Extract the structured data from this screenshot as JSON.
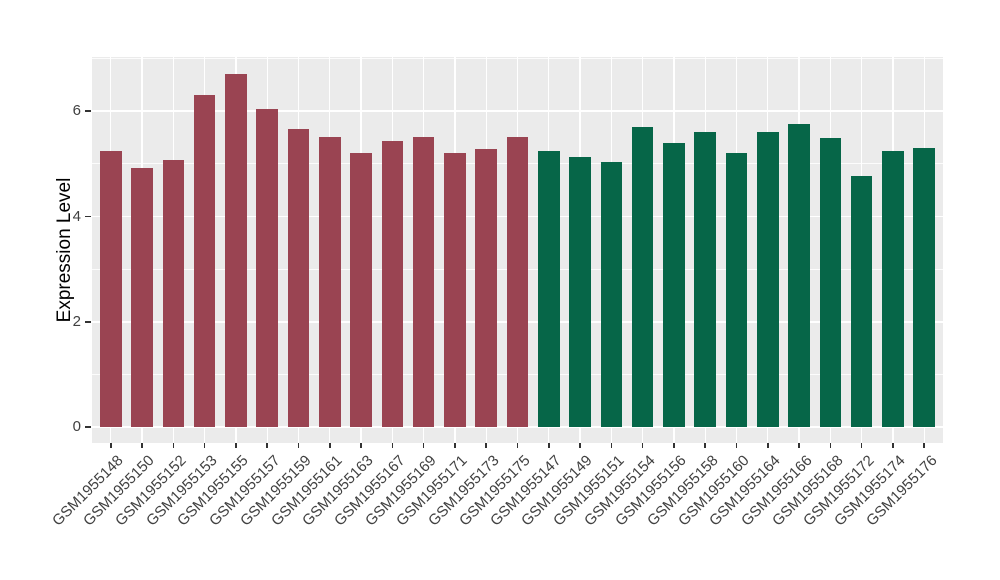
{
  "chart_data": {
    "type": "bar",
    "title": "",
    "xlabel": "",
    "ylabel": "Expression Level",
    "categories": [
      "GSM1955148",
      "GSM1955150",
      "GSM1955152",
      "GSM1955153",
      "GSM1955155",
      "GSM1955157",
      "GSM1955159",
      "GSM1955161",
      "GSM1955163",
      "GSM1955167",
      "GSM1955169",
      "GSM1955171",
      "GSM1955173",
      "GSM1955175",
      "GSM1955147",
      "GSM1955149",
      "GSM1955151",
      "GSM1955154",
      "GSM1955156",
      "GSM1955158",
      "GSM1955160",
      "GSM1955164",
      "GSM1955166",
      "GSM1955168",
      "GSM1955172",
      "GSM1955174",
      "GSM1955176"
    ],
    "values": [
      5.25,
      4.93,
      5.08,
      6.31,
      6.7,
      6.04,
      5.66,
      5.52,
      5.2,
      5.44,
      5.52,
      5.2,
      5.28,
      5.51,
      5.25,
      5.14,
      5.04,
      5.71,
      5.4,
      5.6,
      5.21,
      5.6,
      5.75,
      5.5,
      4.77,
      5.24,
      5.31
    ],
    "groups": [
      0,
      0,
      0,
      0,
      0,
      0,
      0,
      0,
      0,
      0,
      0,
      0,
      0,
      0,
      1,
      1,
      1,
      1,
      1,
      1,
      1,
      1,
      1,
      1,
      1,
      1,
      1
    ],
    "group_colors": [
      "#9A4452",
      "#066648"
    ],
    "yticks": [
      0,
      2,
      4,
      6
    ],
    "yminor": [
      1,
      3,
      5,
      7
    ],
    "ylim": [
      -0.3,
      7.03
    ],
    "xlim": [
      0.4,
      27.6
    ],
    "bar_width": 0.69,
    "legend_position": "none",
    "panel_background": "#EBEBEB",
    "grid_color": "#FFFFFF",
    "tick_mark_color": "#333333",
    "tick_text_color": "#404040",
    "axis_title_color": "#000000"
  }
}
